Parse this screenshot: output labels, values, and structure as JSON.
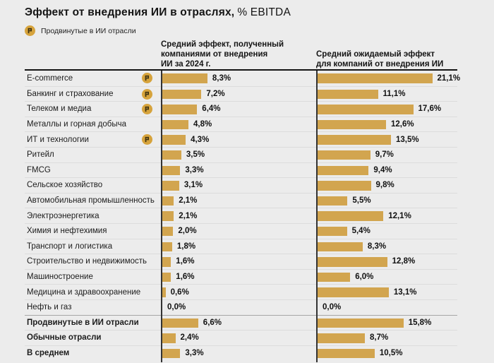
{
  "title": {
    "main": "Эффект от внедрения ИИ в отраслях,",
    "suffix": "% EBITDA"
  },
  "legend": {
    "label": "Продвинутые в ИИ отрасли"
  },
  "column_headers": {
    "got": "Средний эффект, полученный\nкомпаниями от внедрения\nИИ за 2024 г.",
    "expected": "Средний ожидаемый эффект\nдля компаний от внедрения ИИ"
  },
  "chart_data": {
    "type": "bar",
    "orientation": "horizontal",
    "title": "Эффект от внедрения ИИ в отраслях, % EBITDA",
    "value_unit": "% EBITDA",
    "xlim": [
      0,
      22
    ],
    "grid": false,
    "legend_position": "top-left",
    "categories": [
      "E-commerce",
      "Банкинг и страхование",
      "Телеком и медиа",
      "Металлы и горная добыча",
      "ИТ и технологии",
      "Ритейл",
      "FMCG",
      "Сельское хозяйство",
      "Автомобильная промышленность",
      "Электроэнергетика",
      "Химия и нефтехимия",
      "Транспорт и логистика",
      "Строительство и недвижимость",
      "Машиностроение",
      "Медицина и здравоохранение",
      "Нефть и газ",
      "Продвинутые в ИИ отрасли",
      "Обычные отрасли",
      "В среднем"
    ],
    "badge_flags": [
      true,
      true,
      true,
      false,
      true,
      false,
      false,
      false,
      false,
      false,
      false,
      false,
      false,
      false,
      false,
      false,
      false,
      false,
      false
    ],
    "summary_start_index": 16,
    "series": [
      {
        "name": "Средний эффект, полученный компаниями от внедрения ИИ за 2024 г.",
        "values": [
          8.3,
          7.2,
          6.4,
          4.8,
          4.3,
          3.5,
          3.3,
          3.1,
          2.1,
          2.1,
          2.0,
          1.8,
          1.6,
          1.6,
          0.6,
          0.0,
          6.6,
          2.4,
          3.3
        ]
      },
      {
        "name": "Средний ожидаемый эффект для компаний от внедрения ИИ",
        "values": [
          21.1,
          11.1,
          17.6,
          12.6,
          13.5,
          9.7,
          9.4,
          9.8,
          5.5,
          12.1,
          5.4,
          8.3,
          12.8,
          6.0,
          13.1,
          0.0,
          15.8,
          8.7,
          10.5
        ]
      }
    ],
    "colors": {
      "bar": "#D2A54F",
      "badge_fill": "#D6A33C",
      "badge_glyph": "#3E3212",
      "axis": "#333333",
      "background": "#ECECEC"
    }
  }
}
